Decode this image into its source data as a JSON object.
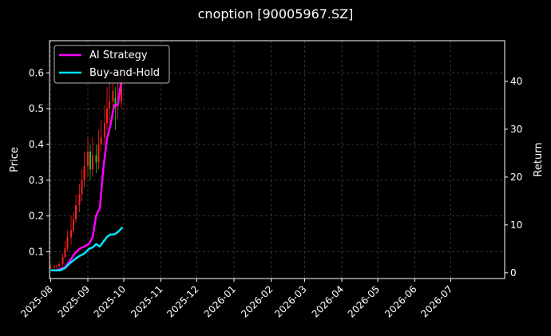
{
  "chart_data": {
    "type": "line",
    "title": "cnoption [90005967.SZ]",
    "ylabel_left": "Price",
    "ylabel_right": "Return",
    "xlim": [
      "2025-07-31",
      "2026-08-15"
    ],
    "ylim_left": [
      0.025,
      0.69
    ],
    "ylim_right": [
      -1.2,
      48.5
    ],
    "x_ticks": [
      "2025-08",
      "2025-09",
      "2025-10",
      "2025-11",
      "2025-12",
      "2026-01",
      "2026-02",
      "2026-03",
      "2026-04",
      "2026-05",
      "2026-06",
      "2026-07"
    ],
    "y_ticks_left": [
      0.1,
      0.2,
      0.3,
      0.4,
      0.5,
      0.6
    ],
    "y_ticks_right": [
      0,
      10,
      20,
      30,
      40
    ],
    "grid": true,
    "legend_position": "top-left",
    "colors": {
      "up": "#ff2020",
      "down": "#20c020",
      "ai": "#ff00ff",
      "bh": "#00e5ff",
      "grid": "#555555",
      "spine": "#ffffff"
    },
    "candles": {
      "axis": "left",
      "dates": [
        "2025-08-01",
        "2025-08-04",
        "2025-08-06",
        "2025-08-08",
        "2025-08-11",
        "2025-08-13",
        "2025-08-15",
        "2025-08-18",
        "2025-08-20",
        "2025-08-22",
        "2025-08-25",
        "2025-08-27",
        "2025-08-29",
        "2025-09-01",
        "2025-09-03",
        "2025-09-05",
        "2025-09-08",
        "2025-09-10",
        "2025-09-12",
        "2025-09-15",
        "2025-09-17",
        "2025-09-19",
        "2025-09-22",
        "2025-09-24",
        "2025-09-26",
        "2025-09-29"
      ],
      "open": [
        0.055,
        0.058,
        0.058,
        0.06,
        0.065,
        0.085,
        0.11,
        0.14,
        0.16,
        0.19,
        0.23,
        0.26,
        0.3,
        0.34,
        0.38,
        0.33,
        0.37,
        0.35,
        0.4,
        0.42,
        0.46,
        0.5,
        0.52,
        0.53,
        0.51,
        0.52
      ],
      "close": [
        0.058,
        0.058,
        0.06,
        0.065,
        0.085,
        0.11,
        0.14,
        0.16,
        0.19,
        0.23,
        0.26,
        0.3,
        0.34,
        0.38,
        0.33,
        0.37,
        0.35,
        0.4,
        0.42,
        0.46,
        0.5,
        0.52,
        0.55,
        0.51,
        0.52,
        0.6
      ],
      "high": [
        0.065,
        0.062,
        0.064,
        0.072,
        0.095,
        0.13,
        0.16,
        0.2,
        0.21,
        0.26,
        0.29,
        0.33,
        0.38,
        0.42,
        0.4,
        0.42,
        0.4,
        0.44,
        0.47,
        0.51,
        0.56,
        0.58,
        0.59,
        0.56,
        0.57,
        0.64
      ],
      "low": [
        0.05,
        0.052,
        0.054,
        0.056,
        0.06,
        0.08,
        0.1,
        0.12,
        0.15,
        0.18,
        0.21,
        0.24,
        0.28,
        0.31,
        0.3,
        0.31,
        0.32,
        0.33,
        0.38,
        0.4,
        0.44,
        0.46,
        0.48,
        0.44,
        0.47,
        0.5
      ]
    },
    "series": [
      {
        "name": "AI Strategy",
        "axis": "right",
        "color": "#ff00ff",
        "x": [
          "2025-08-01",
          "2025-08-05",
          "2025-08-09",
          "2025-08-13",
          "2025-08-17",
          "2025-08-21",
          "2025-08-25",
          "2025-08-29",
          "2025-09-02",
          "2025-09-05",
          "2025-09-08",
          "2025-09-11",
          "2025-09-14",
          "2025-09-17",
          "2025-09-20",
          "2025-09-23",
          "2025-09-26",
          "2025-09-30"
        ],
        "values": [
          0.5,
          0.5,
          0.8,
          1.2,
          2.5,
          4.0,
          5.0,
          5.5,
          6.0,
          7.5,
          12.0,
          13.5,
          22.0,
          28.0,
          31.0,
          35.0,
          35.0,
          42.0
        ]
      },
      {
        "name": "Buy-and-Hold",
        "axis": "right",
        "color": "#00e5ff",
        "x": [
          "2025-08-01",
          "2025-08-05",
          "2025-08-09",
          "2025-08-13",
          "2025-08-17",
          "2025-08-21",
          "2025-08-25",
          "2025-08-29",
          "2025-09-02",
          "2025-09-05",
          "2025-09-08",
          "2025-09-11",
          "2025-09-14",
          "2025-09-17",
          "2025-09-20",
          "2025-09-23",
          "2025-09-26",
          "2025-09-30"
        ],
        "values": [
          0.5,
          0.5,
          0.5,
          1.0,
          2.0,
          2.8,
          3.5,
          4.0,
          5.0,
          5.3,
          6.0,
          5.5,
          6.5,
          7.5,
          8.0,
          8.0,
          8.5,
          9.5
        ]
      }
    ]
  }
}
